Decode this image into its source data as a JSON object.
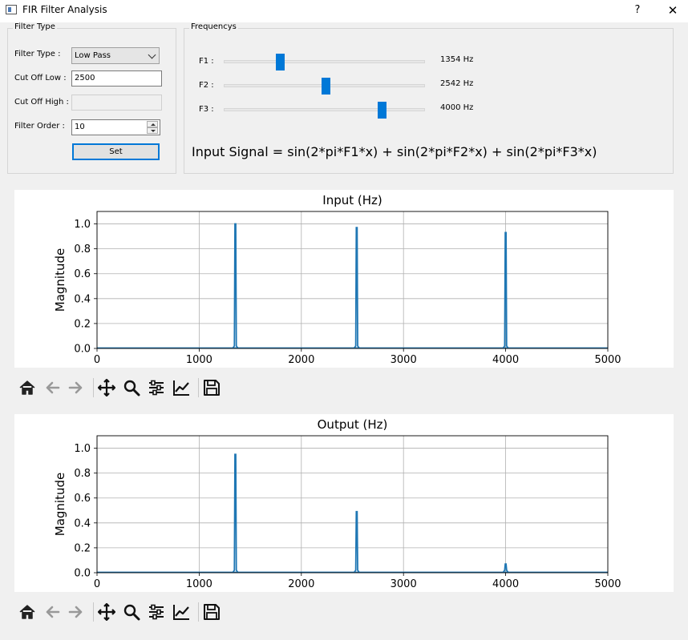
{
  "window": {
    "title": "FIR Filter Analysis",
    "help_label": "?",
    "close_label": "✕"
  },
  "filter": {
    "group_title": "Filter Type",
    "type_label": "Filter Type :",
    "type_value": "Low Pass",
    "cutoff_low_label": "Cut Off Low :",
    "cutoff_low_value": "2500",
    "cutoff_high_label": "Cut Off High :",
    "cutoff_high_value": "",
    "order_label": "Filter Order :",
    "order_value": "10",
    "set_label": "Set"
  },
  "frequencies": {
    "group_title": "Frequencys",
    "slider_max": 5000,
    "items": [
      {
        "label": "F1 :",
        "value": 1354,
        "display": "1354 Hz"
      },
      {
        "label": "F2 :",
        "value": 2542,
        "display": "2542 Hz"
      },
      {
        "label": "F3 :",
        "value": 4000,
        "display": "4000 Hz"
      }
    ],
    "formula": "Input Signal = sin(2*pi*F1*x) + sin(2*pi*F2*x) + sin(2*pi*F3*x)"
  },
  "toolbar_icons": [
    "home-icon",
    "back-icon",
    "forward-icon",
    "pan-icon",
    "zoom-icon",
    "configure-subplots-icon",
    "edit-axis-icon",
    "save-icon"
  ],
  "chart_data": [
    {
      "type": "line",
      "title": "Input (Hz)",
      "xlabel": "",
      "ylabel": "Magnitude",
      "xlim": [
        0,
        5000
      ],
      "ylim": [
        0,
        1.1
      ],
      "xticks": [
        "0",
        "1000",
        "2000",
        "3000",
        "4000",
        "5000"
      ],
      "yticks": [
        "0.0",
        "0.2",
        "0.4",
        "0.6",
        "0.8",
        "1.0"
      ],
      "grid": true,
      "color": "#1f77b4",
      "peaks": [
        {
          "x": 1354,
          "y": 1.0
        },
        {
          "x": 2542,
          "y": 0.97
        },
        {
          "x": 4000,
          "y": 0.93
        }
      ]
    },
    {
      "type": "line",
      "title": "Output (Hz)",
      "xlabel": "",
      "ylabel": "Magnitude",
      "xlim": [
        0,
        5000
      ],
      "ylim": [
        0,
        1.1
      ],
      "xticks": [
        "0",
        "1000",
        "2000",
        "3000",
        "4000",
        "5000"
      ],
      "yticks": [
        "0.0",
        "0.2",
        "0.4",
        "0.6",
        "0.8",
        "1.0"
      ],
      "grid": true,
      "color": "#1f77b4",
      "peaks": [
        {
          "x": 1354,
          "y": 0.95
        },
        {
          "x": 2542,
          "y": 0.49
        },
        {
          "x": 4000,
          "y": 0.07
        }
      ]
    }
  ]
}
